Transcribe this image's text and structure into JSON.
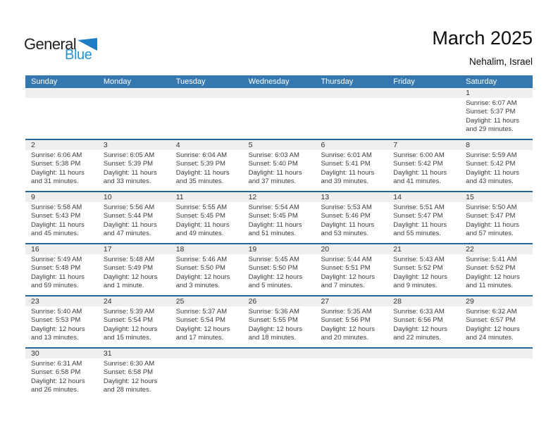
{
  "logo": {
    "part1": "General",
    "part2": "Blue"
  },
  "header": {
    "title": "March 2025",
    "location": "Nehalim, Israel"
  },
  "colors": {
    "header_bar": "#3577af",
    "week_divider": "#2765a0",
    "day_number_band": "#efefef",
    "logo_blue": "#2196d3",
    "logo_triangle_blue": "#1e7dc2"
  },
  "icons": {
    "logo_triangle": "triangle-flag-icon"
  },
  "calendar": {
    "weekdays": [
      "Sunday",
      "Monday",
      "Tuesday",
      "Wednesday",
      "Thursday",
      "Friday",
      "Saturday"
    ],
    "weeks": [
      [
        null,
        null,
        null,
        null,
        null,
        null,
        {
          "day": "1",
          "lines": [
            "Sunrise: 6:07 AM",
            "Sunset: 5:37 PM",
            "Daylight: 11 hours",
            "and 29 minutes."
          ]
        }
      ],
      [
        {
          "day": "2",
          "lines": [
            "Sunrise: 6:06 AM",
            "Sunset: 5:38 PM",
            "Daylight: 11 hours",
            "and 31 minutes."
          ]
        },
        {
          "day": "3",
          "lines": [
            "Sunrise: 6:05 AM",
            "Sunset: 5:39 PM",
            "Daylight: 11 hours",
            "and 33 minutes."
          ]
        },
        {
          "day": "4",
          "lines": [
            "Sunrise: 6:04 AM",
            "Sunset: 5:39 PM",
            "Daylight: 11 hours",
            "and 35 minutes."
          ]
        },
        {
          "day": "5",
          "lines": [
            "Sunrise: 6:03 AM",
            "Sunset: 5:40 PM",
            "Daylight: 11 hours",
            "and 37 minutes."
          ]
        },
        {
          "day": "6",
          "lines": [
            "Sunrise: 6:01 AM",
            "Sunset: 5:41 PM",
            "Daylight: 11 hours",
            "and 39 minutes."
          ]
        },
        {
          "day": "7",
          "lines": [
            "Sunrise: 6:00 AM",
            "Sunset: 5:42 PM",
            "Daylight: 11 hours",
            "and 41 minutes."
          ]
        },
        {
          "day": "8",
          "lines": [
            "Sunrise: 5:59 AM",
            "Sunset: 5:42 PM",
            "Daylight: 11 hours",
            "and 43 minutes."
          ]
        }
      ],
      [
        {
          "day": "9",
          "lines": [
            "Sunrise: 5:58 AM",
            "Sunset: 5:43 PM",
            "Daylight: 11 hours",
            "and 45 minutes."
          ]
        },
        {
          "day": "10",
          "lines": [
            "Sunrise: 5:56 AM",
            "Sunset: 5:44 PM",
            "Daylight: 11 hours",
            "and 47 minutes."
          ]
        },
        {
          "day": "11",
          "lines": [
            "Sunrise: 5:55 AM",
            "Sunset: 5:45 PM",
            "Daylight: 11 hours",
            "and 49 minutes."
          ]
        },
        {
          "day": "12",
          "lines": [
            "Sunrise: 5:54 AM",
            "Sunset: 5:45 PM",
            "Daylight: 11 hours",
            "and 51 minutes."
          ]
        },
        {
          "day": "13",
          "lines": [
            "Sunrise: 5:53 AM",
            "Sunset: 5:46 PM",
            "Daylight: 11 hours",
            "and 53 minutes."
          ]
        },
        {
          "day": "14",
          "lines": [
            "Sunrise: 5:51 AM",
            "Sunset: 5:47 PM",
            "Daylight: 11 hours",
            "and 55 minutes."
          ]
        },
        {
          "day": "15",
          "lines": [
            "Sunrise: 5:50 AM",
            "Sunset: 5:47 PM",
            "Daylight: 11 hours",
            "and 57 minutes."
          ]
        }
      ],
      [
        {
          "day": "16",
          "lines": [
            "Sunrise: 5:49 AM",
            "Sunset: 5:48 PM",
            "Daylight: 11 hours",
            "and 59 minutes."
          ]
        },
        {
          "day": "17",
          "lines": [
            "Sunrise: 5:48 AM",
            "Sunset: 5:49 PM",
            "Daylight: 12 hours",
            "and 1 minute."
          ]
        },
        {
          "day": "18",
          "lines": [
            "Sunrise: 5:46 AM",
            "Sunset: 5:50 PM",
            "Daylight: 12 hours",
            "and 3 minutes."
          ]
        },
        {
          "day": "19",
          "lines": [
            "Sunrise: 5:45 AM",
            "Sunset: 5:50 PM",
            "Daylight: 12 hours",
            "and 5 minutes."
          ]
        },
        {
          "day": "20",
          "lines": [
            "Sunrise: 5:44 AM",
            "Sunset: 5:51 PM",
            "Daylight: 12 hours",
            "and 7 minutes."
          ]
        },
        {
          "day": "21",
          "lines": [
            "Sunrise: 5:43 AM",
            "Sunset: 5:52 PM",
            "Daylight: 12 hours",
            "and 9 minutes."
          ]
        },
        {
          "day": "22",
          "lines": [
            "Sunrise: 5:41 AM",
            "Sunset: 5:52 PM",
            "Daylight: 12 hours",
            "and 11 minutes."
          ]
        }
      ],
      [
        {
          "day": "23",
          "lines": [
            "Sunrise: 5:40 AM",
            "Sunset: 5:53 PM",
            "Daylight: 12 hours",
            "and 13 minutes."
          ]
        },
        {
          "day": "24",
          "lines": [
            "Sunrise: 5:39 AM",
            "Sunset: 5:54 PM",
            "Daylight: 12 hours",
            "and 15 minutes."
          ]
        },
        {
          "day": "25",
          "lines": [
            "Sunrise: 5:37 AM",
            "Sunset: 5:54 PM",
            "Daylight: 12 hours",
            "and 17 minutes."
          ]
        },
        {
          "day": "26",
          "lines": [
            "Sunrise: 5:36 AM",
            "Sunset: 5:55 PM",
            "Daylight: 12 hours",
            "and 18 minutes."
          ]
        },
        {
          "day": "27",
          "lines": [
            "Sunrise: 5:35 AM",
            "Sunset: 5:56 PM",
            "Daylight: 12 hours",
            "and 20 minutes."
          ]
        },
        {
          "day": "28",
          "lines": [
            "Sunrise: 6:33 AM",
            "Sunset: 6:56 PM",
            "Daylight: 12 hours",
            "and 22 minutes."
          ]
        },
        {
          "day": "29",
          "lines": [
            "Sunrise: 6:32 AM",
            "Sunset: 6:57 PM",
            "Daylight: 12 hours",
            "and 24 minutes."
          ]
        }
      ],
      [
        {
          "day": "30",
          "lines": [
            "Sunrise: 6:31 AM",
            "Sunset: 6:58 PM",
            "Daylight: 12 hours",
            "and 26 minutes."
          ]
        },
        {
          "day": "31",
          "lines": [
            "Sunrise: 6:30 AM",
            "Sunset: 6:58 PM",
            "Daylight: 12 hours",
            "and 28 minutes."
          ]
        },
        null,
        null,
        null,
        null,
        null
      ]
    ]
  }
}
